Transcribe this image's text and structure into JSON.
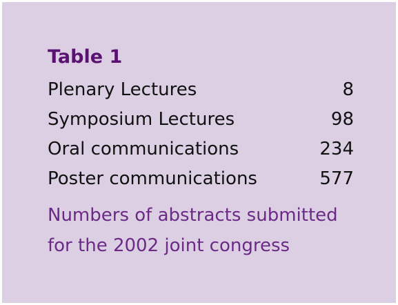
{
  "table": {
    "title": "Table 1",
    "rows": [
      [
        "Plenary Lectures",
        "8"
      ],
      [
        "Symposium Lectures",
        "98"
      ],
      [
        "Oral communications",
        "234"
      ],
      [
        "Poster communications",
        "577"
      ]
    ],
    "caption": [
      "Numbers of abstracts submitted",
      "for the 2002 joint congress"
    ]
  }
}
